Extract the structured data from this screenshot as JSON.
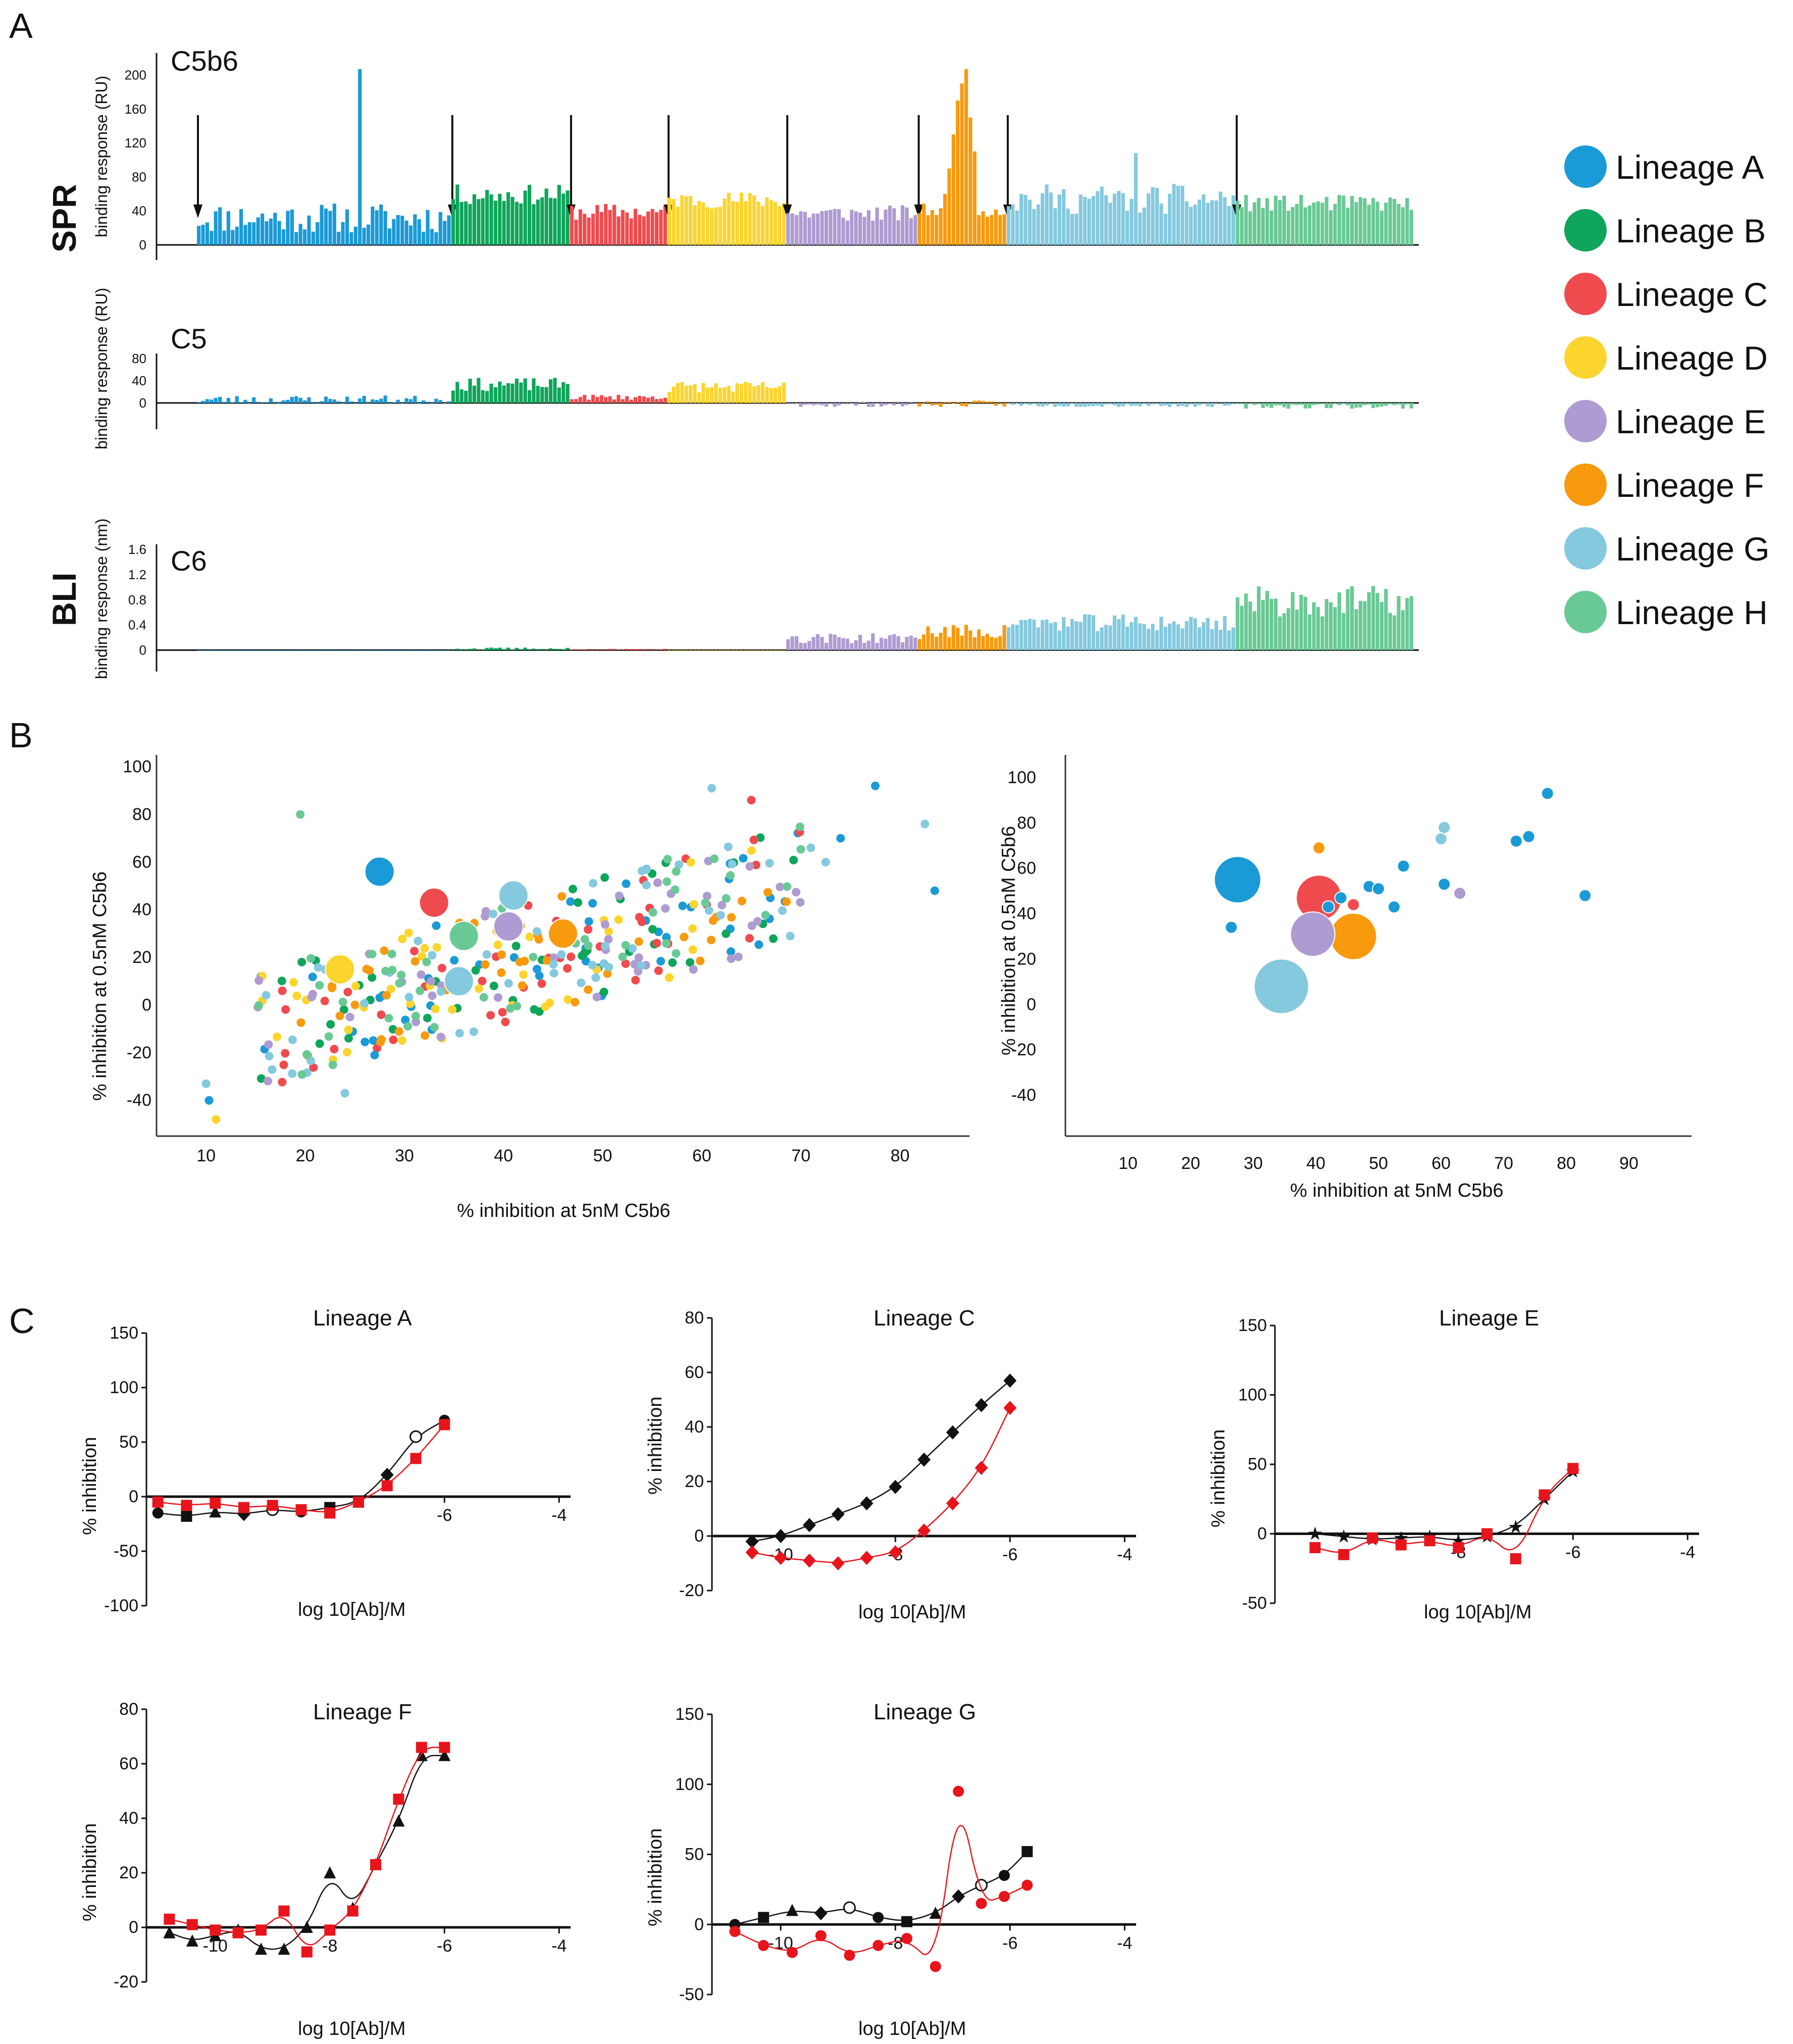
{
  "panels": {
    "a": "A",
    "b": "B",
    "c": "C"
  },
  "lineages": [
    {
      "name": "Lineage A",
      "color": "#1a9ad6"
    },
    {
      "name": "Lineage B",
      "color": "#0fa55a"
    },
    {
      "name": "Lineage C",
      "color": "#ef4b4f"
    },
    {
      "name": "Lineage D",
      "color": "#fcd42e"
    },
    {
      "name": "Lineage E",
      "color": "#ae9bd1"
    },
    {
      "name": "Lineage F",
      "color": "#f79a0e"
    },
    {
      "name": "Lineage G",
      "color": "#84c9de"
    },
    {
      "name": "Lineage H",
      "color": "#69c995"
    }
  ],
  "chart_data": [
    {
      "type": "bar",
      "id": "spr-c5b6",
      "title": "C5b6",
      "section": "SPR",
      "ylabel": "binding response (RU)",
      "yticks": [
        0,
        40,
        80,
        120,
        160,
        200
      ],
      "ylim": [
        0,
        220
      ],
      "groups": [
        {
          "lineage": "Lineage A",
          "count": 60,
          "base": 30,
          "amp": 18,
          "spike_index": 38,
          "spike_value": 207
        },
        {
          "lineage": "Lineage B",
          "count": 28,
          "base": 58,
          "amp": 12
        },
        {
          "lineage": "Lineage C",
          "count": 23,
          "base": 38,
          "amp": 10
        },
        {
          "lineage": "Lineage D",
          "count": 28,
          "base": 52,
          "amp": 10
        },
        {
          "lineage": "Lineage E",
          "count": 31,
          "base": 36,
          "amp": 10
        },
        {
          "lineage": "Lineage F",
          "count": 21,
          "base": 40,
          "amp": 8,
          "peak_values": [
            60,
            90,
            130,
            170,
            190,
            207,
            150,
            110
          ]
        },
        {
          "lineage": "Lineage G",
          "count": 54,
          "base": 52,
          "amp": 18,
          "spike_index": 30,
          "spike_value": 108
        },
        {
          "lineage": "Lineage H",
          "count": 42,
          "base": 48,
          "amp": 10
        }
      ],
      "arrows_at_group_starts": true
    },
    {
      "type": "bar",
      "id": "spr-c5",
      "title": "C5",
      "section": "SPR",
      "ylabel": "binding response (RU)",
      "yticks": [
        0,
        40,
        80
      ],
      "ylim": [
        -20,
        80
      ],
      "groups": [
        {
          "lineage": "Lineage A",
          "count": 60,
          "base": 5,
          "amp": 8
        },
        {
          "lineage": "Lineage B",
          "count": 28,
          "base": 32,
          "amp": 12
        },
        {
          "lineage": "Lineage C",
          "count": 23,
          "base": 10,
          "amp": 5
        },
        {
          "lineage": "Lineage D",
          "count": 28,
          "base": 28,
          "amp": 10
        },
        {
          "lineage": "Lineage E",
          "count": 31,
          "base": -3,
          "amp": 5
        },
        {
          "lineage": "Lineage F",
          "count": 21,
          "base": -2,
          "amp": 6
        },
        {
          "lineage": "Lineage G",
          "count": 54,
          "base": -4,
          "amp": 4
        },
        {
          "lineage": "Lineage H",
          "count": 42,
          "base": -6,
          "amp": 5
        }
      ]
    },
    {
      "type": "bar",
      "id": "bli-c6",
      "title": "C6",
      "section": "BLI",
      "ylabel": "binding response (nm)",
      "yticks": [
        0,
        0.4,
        0.8,
        1.2,
        1.6
      ],
      "ylim": [
        -0.1,
        1.6
      ],
      "groups": [
        {
          "lineage": "Lineage A",
          "count": 60,
          "base": 0.0,
          "amp": 0.0
        },
        {
          "lineage": "Lineage B",
          "count": 28,
          "base": 0.02,
          "amp": 0.02
        },
        {
          "lineage": "Lineage C",
          "count": 23,
          "base": 0.01,
          "amp": 0.01
        },
        {
          "lineage": "Lineage D",
          "count": 28,
          "base": 0.0,
          "amp": 0.0
        },
        {
          "lineage": "Lineage E",
          "count": 31,
          "base": 0.18,
          "amp": 0.08
        },
        {
          "lineage": "Lineage F",
          "count": 21,
          "base": 0.28,
          "amp": 0.12
        },
        {
          "lineage": "Lineage G",
          "count": 54,
          "base": 0.42,
          "amp": 0.14
        },
        {
          "lineage": "Lineage H",
          "count": 42,
          "base": 0.75,
          "amp": 0.25
        }
      ]
    },
    {
      "type": "scatter",
      "id": "scatter-all",
      "xlabel": "% inhibition at 5nM C5b6",
      "ylabel": "% inhibition at 0.5nM C5b6",
      "xlim": [
        5,
        87
      ],
      "ylim": [
        -55,
        105
      ],
      "xticks": [
        10,
        20,
        30,
        40,
        50,
        60,
        70,
        80
      ],
      "yticks": [
        -40,
        -20,
        0,
        20,
        40,
        60,
        80,
        100
      ],
      "generated_points_per_lineage": 45,
      "small_points": [
        {
          "x": 10,
          "y": -33,
          "lineage": "Lineage G"
        },
        {
          "x": 10.3,
          "y": -40,
          "lineage": "Lineage A"
        },
        {
          "x": 11,
          "y": -48,
          "lineage": "Lineage D"
        },
        {
          "x": 19.5,
          "y": 80,
          "lineage": "Lineage H"
        },
        {
          "x": 24,
          "y": -37,
          "lineage": "Lineage G"
        },
        {
          "x": 27,
          "y": -21,
          "lineage": "Lineage A"
        },
        {
          "x": 77.5,
          "y": 92,
          "lineage": "Lineage A"
        },
        {
          "x": 82.5,
          "y": 76,
          "lineage": "Lineage G"
        },
        {
          "x": 83.5,
          "y": 48,
          "lineage": "Lineage A"
        },
        {
          "x": 61,
          "y": 91,
          "lineage": "Lineage G"
        },
        {
          "x": 65,
          "y": 86,
          "lineage": "Lineage C"
        },
        {
          "x": 71,
          "y": 66,
          "lineage": "Lineage G"
        },
        {
          "x": 72.5,
          "y": 60,
          "lineage": "Lineage G"
        },
        {
          "x": 74,
          "y": 70,
          "lineage": "Lineage A"
        }
      ],
      "big_points": [
        {
          "x": 27.5,
          "y": 56,
          "lineage": "Lineage A"
        },
        {
          "x": 33,
          "y": 43,
          "lineage": "Lineage C"
        },
        {
          "x": 23.5,
          "y": 15,
          "lineage": "Lineage D"
        },
        {
          "x": 36,
          "y": 29,
          "lineage": "Lineage H"
        },
        {
          "x": 40.5,
          "y": 33,
          "lineage": "Lineage E"
        },
        {
          "x": 41,
          "y": 46,
          "lineage": "Lineage G"
        },
        {
          "x": 35.5,
          "y": 10,
          "lineage": "Lineage G"
        },
        {
          "x": 46,
          "y": 30,
          "lineage": "Lineage F"
        }
      ]
    },
    {
      "type": "scatter",
      "id": "scatter-selected",
      "xlabel": "% inhibition at 5nM C5b6",
      "ylabel": "% inhibition at 0.5nM C5b6",
      "xlim": [
        0,
        100
      ],
      "ylim": [
        -58,
        110
      ],
      "xticks": [
        10,
        20,
        30,
        40,
        50,
        60,
        70,
        80,
        90
      ],
      "yticks": [
        -40,
        -20,
        0,
        20,
        40,
        60,
        80,
        100
      ],
      "points": [
        {
          "x": 27.5,
          "y": 55,
          "r": 46,
          "lineage": "Lineage A"
        },
        {
          "x": 26.5,
          "y": 34,
          "r": 12,
          "lineage": "Lineage A"
        },
        {
          "x": 40.5,
          "y": 47,
          "r": 45,
          "lineage": "Lineage C"
        },
        {
          "x": 39.5,
          "y": 31,
          "r": 44,
          "lineage": "Lineage E"
        },
        {
          "x": 46,
          "y": 30,
          "r": 46,
          "lineage": "Lineage F"
        },
        {
          "x": 34.5,
          "y": 8,
          "r": 54,
          "lineage": "Lineage G"
        },
        {
          "x": 40.5,
          "y": 69,
          "r": 12,
          "lineage": "Lineage F"
        },
        {
          "x": 42,
          "y": 43,
          "r": 12,
          "lineage": "Lineage A"
        },
        {
          "x": 44,
          "y": 47,
          "r": 12,
          "lineage": "Lineage A"
        },
        {
          "x": 46,
          "y": 44,
          "r": 12,
          "lineage": "Lineage C"
        },
        {
          "x": 48.5,
          "y": 52,
          "r": 12,
          "lineage": "Lineage A"
        },
        {
          "x": 50,
          "y": 51,
          "r": 12,
          "lineage": "Lineage A"
        },
        {
          "x": 52.5,
          "y": 43,
          "r": 12,
          "lineage": "Lineage A"
        },
        {
          "x": 54,
          "y": 61,
          "r": 12,
          "lineage": "Lineage A"
        },
        {
          "x": 60,
          "y": 73,
          "r": 12,
          "lineage": "Lineage G"
        },
        {
          "x": 60.5,
          "y": 78,
          "r": 12,
          "lineage": "Lineage G"
        },
        {
          "x": 60.5,
          "y": 53,
          "r": 12,
          "lineage": "Lineage A"
        },
        {
          "x": 63,
          "y": 49,
          "r": 12,
          "lineage": "Lineage E"
        },
        {
          "x": 72,
          "y": 72,
          "r": 12,
          "lineage": "Lineage A"
        },
        {
          "x": 74,
          "y": 74,
          "r": 12,
          "lineage": "Lineage A"
        },
        {
          "x": 77,
          "y": 93,
          "r": 12,
          "lineage": "Lineage A"
        },
        {
          "x": 83,
          "y": 48,
          "r": 12,
          "lineage": "Lineage A"
        }
      ]
    },
    {
      "type": "line",
      "id": "dose-lineage-a",
      "title": "Lineage A",
      "xlabel": "log 10[Ab]/M",
      "ylabel": "% inhibition",
      "xlim": [
        -11.2,
        -3.8
      ],
      "ylim": [
        -100,
        150
      ],
      "xticks": [
        -6,
        -4
      ],
      "yticks": [
        -100,
        -50,
        0,
        50,
        100,
        150
      ],
      "series": [
        {
          "name": "red",
          "color": "#e8141c",
          "marker": "square",
          "x": [
            -11,
            -10.5,
            -10,
            -9.5,
            -9,
            -8.5,
            -8,
            -7.5,
            -7,
            -6.5,
            -6
          ],
          "y": [
            -5,
            -8,
            -6,
            -10,
            -8,
            -12,
            -15,
            -5,
            10,
            35,
            66
          ]
        },
        {
          "name": "black",
          "color": "#111111",
          "marker": "mixed",
          "x": [
            -11,
            -10.5,
            -10,
            -9.5,
            -9,
            -8.5,
            -8,
            -7.5,
            -7,
            -6.5,
            -6
          ],
          "y": [
            -15,
            -18,
            -14,
            -16,
            -12,
            -14,
            -10,
            -5,
            20,
            55,
            70
          ]
        }
      ]
    },
    {
      "type": "line",
      "id": "dose-lineage-c",
      "title": "Lineage C",
      "xlabel": "log 10[Ab]/M",
      "ylabel": "% inhibition",
      "xlim": [
        -11.2,
        -3.8
      ],
      "ylim": [
        -20,
        80
      ],
      "xticks": [
        -10,
        -8,
        -6,
        -4
      ],
      "yticks": [
        -20,
        0,
        20,
        40,
        60,
        80
      ],
      "series": [
        {
          "name": "red",
          "color": "#e8141c",
          "marker": "diamond",
          "x": [
            -10.5,
            -10,
            -9.5,
            -9,
            -8.5,
            -8,
            -7.5,
            -7,
            -6.5,
            -6
          ],
          "y": [
            -6,
            -8,
            -9,
            -10,
            -8,
            -6,
            2,
            12,
            25,
            47
          ]
        },
        {
          "name": "black",
          "color": "#111111",
          "marker": "diamond",
          "x": [
            -10.5,
            -10,
            -9.5,
            -9,
            -8.5,
            -8,
            -7.5,
            -7,
            -6.5,
            -6
          ],
          "y": [
            -2,
            0,
            4,
            8,
            12,
            18,
            28,
            38,
            48,
            57
          ]
        }
      ]
    },
    {
      "type": "line",
      "id": "dose-lineage-e",
      "title": "Lineage E",
      "xlabel": "log 10[Ab]/M",
      "ylabel": "% inhibition",
      "xlim": [
        -11.2,
        -3.8
      ],
      "ylim": [
        -50,
        150
      ],
      "xticks": [
        -8,
        -6,
        -4
      ],
      "yticks": [
        -50,
        0,
        50,
        100,
        150
      ],
      "series": [
        {
          "name": "red",
          "color": "#e8141c",
          "marker": "square",
          "x": [
            -10.5,
            -10,
            -9.5,
            -9,
            -8.5,
            -8,
            -7.5,
            -7,
            -6.5,
            -6
          ],
          "y": [
            -10,
            -15,
            -3,
            -8,
            -5,
            -10,
            0,
            -18,
            28,
            47
          ]
        },
        {
          "name": "black",
          "color": "#111111",
          "marker": "star",
          "x": [
            -10.5,
            -10,
            -9.5,
            -9,
            -8.5,
            -8,
            -7.5,
            -7,
            -6.5,
            -6
          ],
          "y": [
            0,
            -2,
            -4,
            -3,
            -2,
            -5,
            -2,
            5,
            25,
            45
          ]
        }
      ]
    },
    {
      "type": "line",
      "id": "dose-lineage-f",
      "title": "Lineage F",
      "xlabel": "log 10[Ab]/M",
      "ylabel": "% inhibition",
      "xlim": [
        -11.2,
        -3.8
      ],
      "ylim": [
        -20,
        80
      ],
      "xticks": [
        -10,
        -8,
        -6,
        -4
      ],
      "yticks": [
        -20,
        0,
        20,
        40,
        60,
        80
      ],
      "series": [
        {
          "name": "red",
          "color": "#e8141c",
          "marker": "square",
          "x": [
            -10.8,
            -10.4,
            -10,
            -9.6,
            -9.2,
            -8.8,
            -8.4,
            -8,
            -7.6,
            -7.2,
            -6.8,
            -6.4,
            -6
          ],
          "y": [
            3,
            1,
            -1,
            -2,
            -1,
            6,
            -9,
            -1,
            6,
            23,
            47,
            66,
            66
          ]
        },
        {
          "name": "black",
          "color": "#111111",
          "marker": "triangle",
          "x": [
            -10.8,
            -10.4,
            -10,
            -9.6,
            -9.2,
            -8.8,
            -8.4,
            -8,
            -7.6,
            -7.2,
            -6.8,
            -6.4,
            -6
          ],
          "y": [
            -2,
            -5,
            -3,
            -1,
            -8,
            -8,
            0,
            20,
            7,
            23,
            39,
            63,
            63
          ]
        }
      ]
    },
    {
      "type": "line",
      "id": "dose-lineage-g",
      "title": "Lineage G",
      "xlabel": "log 10[Ab]/M",
      "ylabel": "% inhibition",
      "xlim": [
        -11.2,
        -3.8
      ],
      "ylim": [
        -50,
        150
      ],
      "xticks": [
        -10,
        -8,
        -6,
        -4
      ],
      "yticks": [
        -50,
        0,
        50,
        100,
        150
      ],
      "series": [
        {
          "name": "red",
          "color": "#e8141c",
          "marker": "circle",
          "x": [
            -10.8,
            -10.3,
            -9.8,
            -9.3,
            -8.8,
            -8.3,
            -7.8,
            -7.3,
            -6.9,
            -6.5,
            -6.1,
            -5.7
          ],
          "y": [
            -5,
            -15,
            -20,
            -8,
            -22,
            -15,
            -10,
            -30,
            95,
            15,
            20,
            28
          ]
        },
        {
          "name": "black",
          "color": "#111111",
          "marker": "mixed",
          "x": [
            -10.8,
            -10.3,
            -9.8,
            -9.3,
            -8.8,
            -8.3,
            -7.8,
            -7.3,
            -6.9,
            -6.5,
            -6.1,
            -5.7
          ],
          "y": [
            0,
            5,
            10,
            8,
            12,
            5,
            2,
            8,
            20,
            28,
            35,
            52
          ]
        }
      ]
    }
  ]
}
